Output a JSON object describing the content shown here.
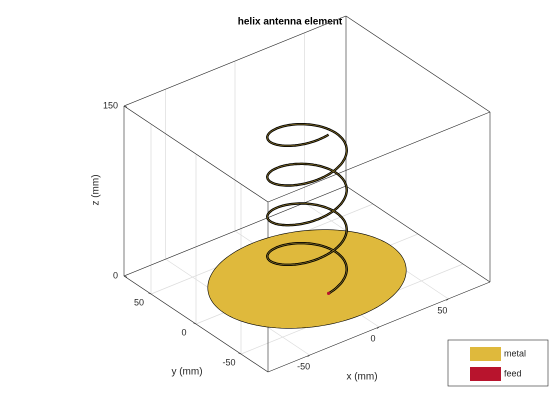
{
  "chart_data": {
    "type": "helix3d",
    "title": "helix antenna element",
    "xlabel": "x (mm)",
    "ylabel": "y (mm)",
    "zlabel": "z (mm)",
    "xlim": [
      -80,
      80
    ],
    "ylim": [
      -80,
      80
    ],
    "zlim": [
      0,
      150
    ],
    "xticks": [
      -50,
      0,
      50
    ],
    "yticks": [
      -50,
      0,
      50
    ],
    "zticks": [
      0,
      150
    ],
    "grid": true,
    "helix": {
      "radius": 24,
      "turns": 4,
      "height": 140
    },
    "ground_plane": {
      "radius": 60
    },
    "legend": [
      {
        "name": "metal",
        "color": "#dfb93c"
      },
      {
        "name": "feed",
        "color": "#b8142d"
      }
    ],
    "legend_position": "lower right"
  }
}
